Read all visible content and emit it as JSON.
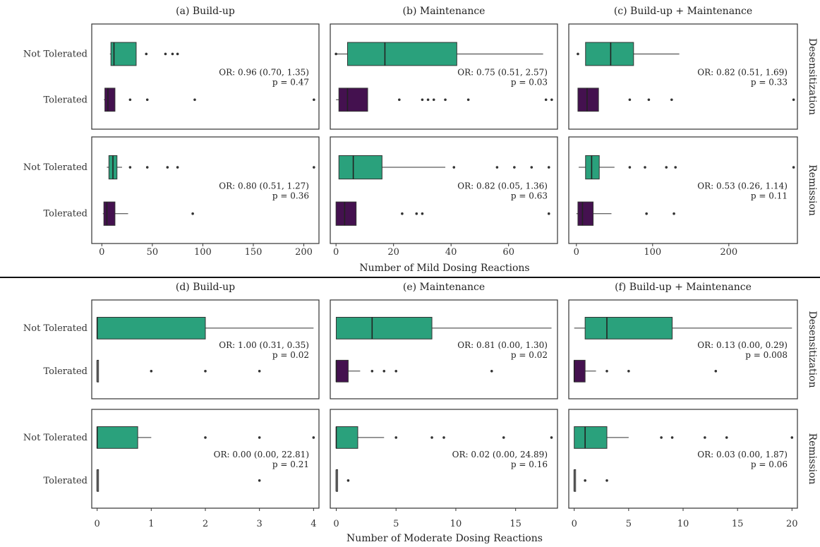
{
  "figure": {
    "sections": [
      {
        "xlabel": "Number of Mild Dosing Reactions",
        "rows": [
          "Desensitization",
          "Remission"
        ],
        "categories": [
          "Not Tolerated",
          "Tolerated"
        ]
      },
      {
        "xlabel": "Number of Moderate Dosing Reactions",
        "rows": [
          "Desensitization",
          "Remission"
        ],
        "categories": [
          "Not Tolerated",
          "Tolerated"
        ]
      }
    ]
  },
  "colors": {
    "not_tolerated": "#2aa17c",
    "tolerated": "#44114f",
    "panel_border": "#333333"
  },
  "chart_data": [
    {
      "type": "box",
      "title": "(a) Build-up",
      "xlim": [
        -10,
        215
      ],
      "ticks": [
        0,
        50,
        100,
        150,
        200
      ],
      "rows": [
        {
          "strip": "Desensitization",
          "boxes": [
            {
              "category": "Not Tolerated",
              "whisker_lo": 8,
              "q1": 9,
              "median": 12,
              "q3": 34,
              "whisker_hi": 34,
              "outliers": [
                44,
                63,
                70,
                75
              ]
            },
            {
              "category": "Tolerated",
              "whisker_lo": 2,
              "q1": 3,
              "median": 6,
              "q3": 13,
              "whisker_hi": 13,
              "outliers": [
                28,
                45,
                92,
                210
              ]
            }
          ],
          "annotation": [
            "OR: 0.96 (0.70, 1.35)",
            "p = 0.47"
          ]
        },
        {
          "strip": "Remission",
          "boxes": [
            {
              "category": "Not Tolerated",
              "whisker_lo": 5,
              "q1": 7,
              "median": 11,
              "q3": 15,
              "whisker_hi": 20,
              "outliers": [
                28,
                45,
                65,
                75,
                210
              ]
            },
            {
              "category": "Tolerated",
              "whisker_lo": 1,
              "q1": 2,
              "median": 5,
              "q3": 13,
              "whisker_hi": 26,
              "outliers": [
                90
              ]
            }
          ],
          "annotation": [
            "OR: 0.80 (0.51, 1.27)",
            "p = 0.36"
          ]
        }
      ]
    },
    {
      "type": "box",
      "title": "(b) Maintenance",
      "xlim": [
        -2,
        77
      ],
      "ticks": [
        0,
        20,
        40,
        60
      ],
      "rows": [
        {
          "strip": "Desensitization",
          "boxes": [
            {
              "category": "Not Tolerated",
              "whisker_lo": 0,
              "q1": 4,
              "median": 17,
              "q3": 42,
              "whisker_hi": 72,
              "outliers": [
                0
              ]
            },
            {
              "category": "Tolerated",
              "whisker_lo": 0,
              "q1": 1,
              "median": 4,
              "q3": 11,
              "whisker_hi": 11,
              "outliers": [
                22,
                30,
                32,
                34,
                38,
                46,
                73,
                75
              ]
            }
          ],
          "annotation": [
            "OR: 0.75 (0.51, 2.57)",
            "p = 0.03"
          ]
        },
        {
          "strip": "Remission",
          "boxes": [
            {
              "category": "Not Tolerated",
              "whisker_lo": 1,
              "q1": 1,
              "median": 6,
              "q3": 16,
              "whisker_hi": 38,
              "outliers": [
                41,
                56,
                62,
                68,
                74
              ]
            },
            {
              "category": "Tolerated",
              "whisker_lo": 0,
              "q1": 0,
              "median": 3,
              "q3": 7,
              "whisker_hi": 7,
              "outliers": [
                23,
                28,
                30,
                74
              ]
            }
          ],
          "annotation": [
            "OR: 0.82 (0.05, 1.36)",
            "p = 0.63"
          ]
        }
      ]
    },
    {
      "type": "box",
      "title": "(c) Build-up + Maintenance",
      "xlim": [
        -10,
        290
      ],
      "ticks": [
        0,
        100,
        200
      ],
      "rows": [
        {
          "strip": "Desensitization",
          "boxes": [
            {
              "category": "Not Tolerated",
              "whisker_lo": 12,
              "q1": 12,
              "median": 45,
              "q3": 75,
              "whisker_hi": 135,
              "outliers": [
                2
              ]
            },
            {
              "category": "Tolerated",
              "whisker_lo": 2,
              "q1": 2,
              "median": 14,
              "q3": 29,
              "whisker_hi": 29,
              "outliers": [
                70,
                95,
                125,
                285
              ]
            }
          ],
          "annotation": [
            "OR: 0.82 (0.51, 1.69)",
            "p = 0.33"
          ]
        },
        {
          "strip": "Remission",
          "boxes": [
            {
              "category": "Not Tolerated",
              "whisker_lo": 3,
              "q1": 12,
              "median": 20,
              "q3": 30,
              "whisker_hi": 50,
              "outliers": [
                70,
                90,
                118,
                130,
                285
              ]
            },
            {
              "category": "Tolerated",
              "whisker_lo": 0,
              "q1": 2,
              "median": 8,
              "q3": 22,
              "whisker_hi": 46,
              "outliers": [
                92,
                128
              ]
            }
          ],
          "annotation": [
            "OR: 0.53 (0.26, 1.14)",
            "p = 0.11"
          ]
        }
      ]
    },
    {
      "type": "box",
      "title": "(d) Build-up",
      "xlim": [
        -0.1,
        4.1
      ],
      "ticks": [
        0,
        1,
        2,
        3,
        4
      ],
      "rows": [
        {
          "strip": "Desensitization",
          "boxes": [
            {
              "category": "Not Tolerated",
              "whisker_lo": 0,
              "q1": 0,
              "median": 0,
              "q3": 2,
              "whisker_hi": 4,
              "outliers": []
            },
            {
              "category": "Tolerated",
              "whisker_lo": 0,
              "q1": 0,
              "median": 0,
              "q3": 0,
              "whisker_hi": 0,
              "outliers": [
                1,
                2,
                3
              ]
            }
          ],
          "annotation": [
            "OR: 1.00 (0.31, 0.35)",
            "p = 0.02"
          ]
        },
        {
          "strip": "Remission",
          "boxes": [
            {
              "category": "Not Tolerated",
              "whisker_lo": 0,
              "q1": 0,
              "median": 0,
              "q3": 0.75,
              "whisker_hi": 1,
              "outliers": [
                2,
                3,
                4
              ]
            },
            {
              "category": "Tolerated",
              "whisker_lo": 0,
              "q1": 0,
              "median": 0,
              "q3": 0,
              "whisker_hi": 0,
              "outliers": [
                3
              ]
            }
          ],
          "annotation": [
            "OR: 0.00 (0.00, 22.81)",
            "p = 0.21"
          ]
        }
      ]
    },
    {
      "type": "box",
      "title": "(e) Maintenance",
      "xlim": [
        -0.5,
        18.5
      ],
      "ticks": [
        0,
        5,
        10,
        15
      ],
      "rows": [
        {
          "strip": "Desensitization",
          "boxes": [
            {
              "category": "Not Tolerated",
              "whisker_lo": 0,
              "q1": 0,
              "median": 3,
              "q3": 8,
              "whisker_hi": 18,
              "outliers": []
            },
            {
              "category": "Tolerated",
              "whisker_lo": 0,
              "q1": 0,
              "median": 0,
              "q3": 1,
              "whisker_hi": 2,
              "outliers": [
                3,
                4,
                5,
                13
              ]
            }
          ],
          "annotation": [
            "OR: 0.81 (0.00, 1.30)",
            "p = 0.02"
          ]
        },
        {
          "strip": "Remission",
          "boxes": [
            {
              "category": "Not Tolerated",
              "whisker_lo": 0,
              "q1": 0,
              "median": 0,
              "q3": 1.8,
              "whisker_hi": 4,
              "outliers": [
                5,
                8,
                9,
                14,
                18
              ]
            },
            {
              "category": "Tolerated",
              "whisker_lo": 0,
              "q1": 0,
              "median": 0,
              "q3": 0,
              "whisker_hi": 0,
              "outliers": [
                1
              ]
            }
          ],
          "annotation": [
            "OR: 0.02 (0.00, 24.89)",
            "p = 0.16"
          ]
        }
      ]
    },
    {
      "type": "box",
      "title": "(f) Build-up + Maintenance",
      "xlim": [
        -0.5,
        20.5
      ],
      "ticks": [
        0,
        5,
        10,
        15,
        20
      ],
      "rows": [
        {
          "strip": "Desensitization",
          "boxes": [
            {
              "category": "Not Tolerated",
              "whisker_lo": 0,
              "q1": 1,
              "median": 3,
              "q3": 9,
              "whisker_hi": 20,
              "outliers": []
            },
            {
              "category": "Tolerated",
              "whisker_lo": 0,
              "q1": 0,
              "median": 0,
              "q3": 1,
              "whisker_hi": 2,
              "outliers": [
                3,
                5,
                13
              ]
            }
          ],
          "annotation": [
            "OR: 0.13 (0.00, 0.29)",
            "p = 0.008"
          ]
        },
        {
          "strip": "Remission",
          "boxes": [
            {
              "category": "Not Tolerated",
              "whisker_lo": 0,
              "q1": 0,
              "median": 1,
              "q3": 3,
              "whisker_hi": 5,
              "outliers": [
                8,
                9,
                12,
                14,
                20
              ]
            },
            {
              "category": "Tolerated",
              "whisker_lo": 0,
              "q1": 0,
              "median": 0,
              "q3": 0,
              "whisker_hi": 0,
              "outliers": [
                1,
                3
              ]
            }
          ],
          "annotation": [
            "OR: 0.03 (0.00, 1.87)",
            "p = 0.06"
          ]
        }
      ]
    }
  ]
}
